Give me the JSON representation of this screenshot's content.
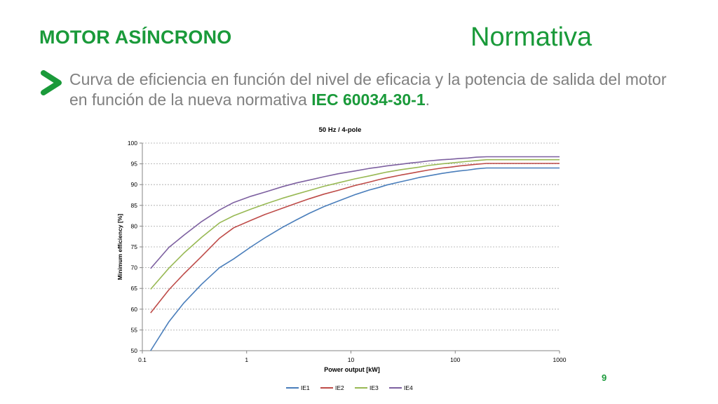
{
  "slide": {
    "heading": "MOTOR ASÍNCRONO",
    "section": "Normativa",
    "intro_text": "Curva de eficiencia en función del nivel de eficacia y la potencia de salida del motor en función de la nueva normativa ",
    "intro_highlight": "IEC 60034-30-1",
    "intro_end": ".",
    "page_number": "9",
    "accent_color": "#1a9a3a",
    "bullet_icon": "chevron-right-icon"
  },
  "chart_data": {
    "type": "line",
    "title": "50 Hz / 4-pole",
    "xlabel": "Power output [kW]",
    "ylabel": "Minimum efficiency [%]",
    "xscale": "log",
    "xlim": [
      0.1,
      1000
    ],
    "ylim": [
      50,
      100
    ],
    "xticks": [
      0.1,
      1,
      10,
      100,
      1000
    ],
    "xtick_labels": [
      "0.1",
      "1",
      "10",
      "100",
      "1000"
    ],
    "yticks": [
      50,
      55,
      60,
      65,
      70,
      75,
      80,
      85,
      90,
      95,
      100
    ],
    "grid": true,
    "legend_position": "bottom",
    "series": [
      {
        "name": "IE1",
        "color": "#4a7ebb",
        "x": [
          0.12,
          0.18,
          0.25,
          0.37,
          0.55,
          0.75,
          1.1,
          1.5,
          2.2,
          3,
          4,
          5.5,
          7.5,
          11,
          15,
          18.5,
          22,
          30,
          37,
          45,
          55,
          75,
          90,
          110,
          132,
          160,
          200,
          250,
          315,
          355,
          400,
          500,
          1000
        ],
        "y": [
          50.0,
          57.0,
          61.5,
          66.0,
          70.0,
          72.1,
          75.0,
          77.2,
          79.7,
          81.5,
          83.1,
          84.7,
          86.0,
          87.6,
          88.7,
          89.3,
          89.9,
          90.7,
          91.2,
          91.7,
          92.1,
          92.7,
          93.0,
          93.3,
          93.5,
          93.8,
          94.0,
          94.0,
          94.0,
          94.0,
          94.0,
          94.0,
          94.0
        ]
      },
      {
        "name": "IE2",
        "color": "#be4b48",
        "x": [
          0.12,
          0.18,
          0.25,
          0.37,
          0.55,
          0.75,
          1.1,
          1.5,
          2.2,
          3,
          4,
          5.5,
          7.5,
          11,
          15,
          18.5,
          22,
          30,
          37,
          45,
          55,
          75,
          90,
          110,
          132,
          160,
          200,
          250,
          315,
          355,
          400,
          500,
          1000
        ],
        "y": [
          59.1,
          64.7,
          68.5,
          72.7,
          77.1,
          79.6,
          81.4,
          82.8,
          84.3,
          85.5,
          86.6,
          87.7,
          88.6,
          89.8,
          90.6,
          91.2,
          91.6,
          92.3,
          92.7,
          93.1,
          93.5,
          94.0,
          94.2,
          94.5,
          94.7,
          94.9,
          95.1,
          95.1,
          95.1,
          95.1,
          95.1,
          95.1,
          95.1
        ]
      },
      {
        "name": "IE3",
        "color": "#98b954",
        "x": [
          0.12,
          0.18,
          0.25,
          0.37,
          0.55,
          0.75,
          1.1,
          1.5,
          2.2,
          3,
          4,
          5.5,
          7.5,
          11,
          15,
          18.5,
          22,
          30,
          37,
          45,
          55,
          75,
          90,
          110,
          132,
          160,
          200,
          250,
          315,
          355,
          400,
          500,
          1000
        ],
        "y": [
          64.8,
          69.9,
          73.5,
          77.3,
          80.8,
          82.5,
          84.1,
          85.3,
          86.7,
          87.7,
          88.6,
          89.6,
          90.4,
          91.4,
          92.1,
          92.6,
          93.0,
          93.6,
          93.9,
          94.2,
          94.6,
          95.0,
          95.2,
          95.4,
          95.6,
          95.8,
          96.0,
          96.0,
          96.0,
          96.0,
          96.0,
          96.0,
          96.0
        ]
      },
      {
        "name": "IE4",
        "color": "#7d60a0",
        "x": [
          0.12,
          0.18,
          0.25,
          0.37,
          0.55,
          0.75,
          1.1,
          1.5,
          2.2,
          3,
          4,
          5.5,
          7.5,
          11,
          15,
          18.5,
          22,
          30,
          37,
          45,
          55,
          75,
          90,
          110,
          132,
          160,
          200,
          250,
          315,
          355,
          400,
          500,
          1000
        ],
        "y": [
          69.8,
          74.9,
          77.8,
          81.1,
          83.9,
          85.7,
          87.2,
          88.2,
          89.5,
          90.4,
          91.1,
          91.9,
          92.6,
          93.3,
          93.9,
          94.2,
          94.5,
          94.9,
          95.2,
          95.4,
          95.7,
          96.0,
          96.1,
          96.3,
          96.4,
          96.6,
          96.7,
          96.7,
          96.7,
          96.7,
          96.7,
          96.7,
          96.7
        ]
      }
    ]
  }
}
